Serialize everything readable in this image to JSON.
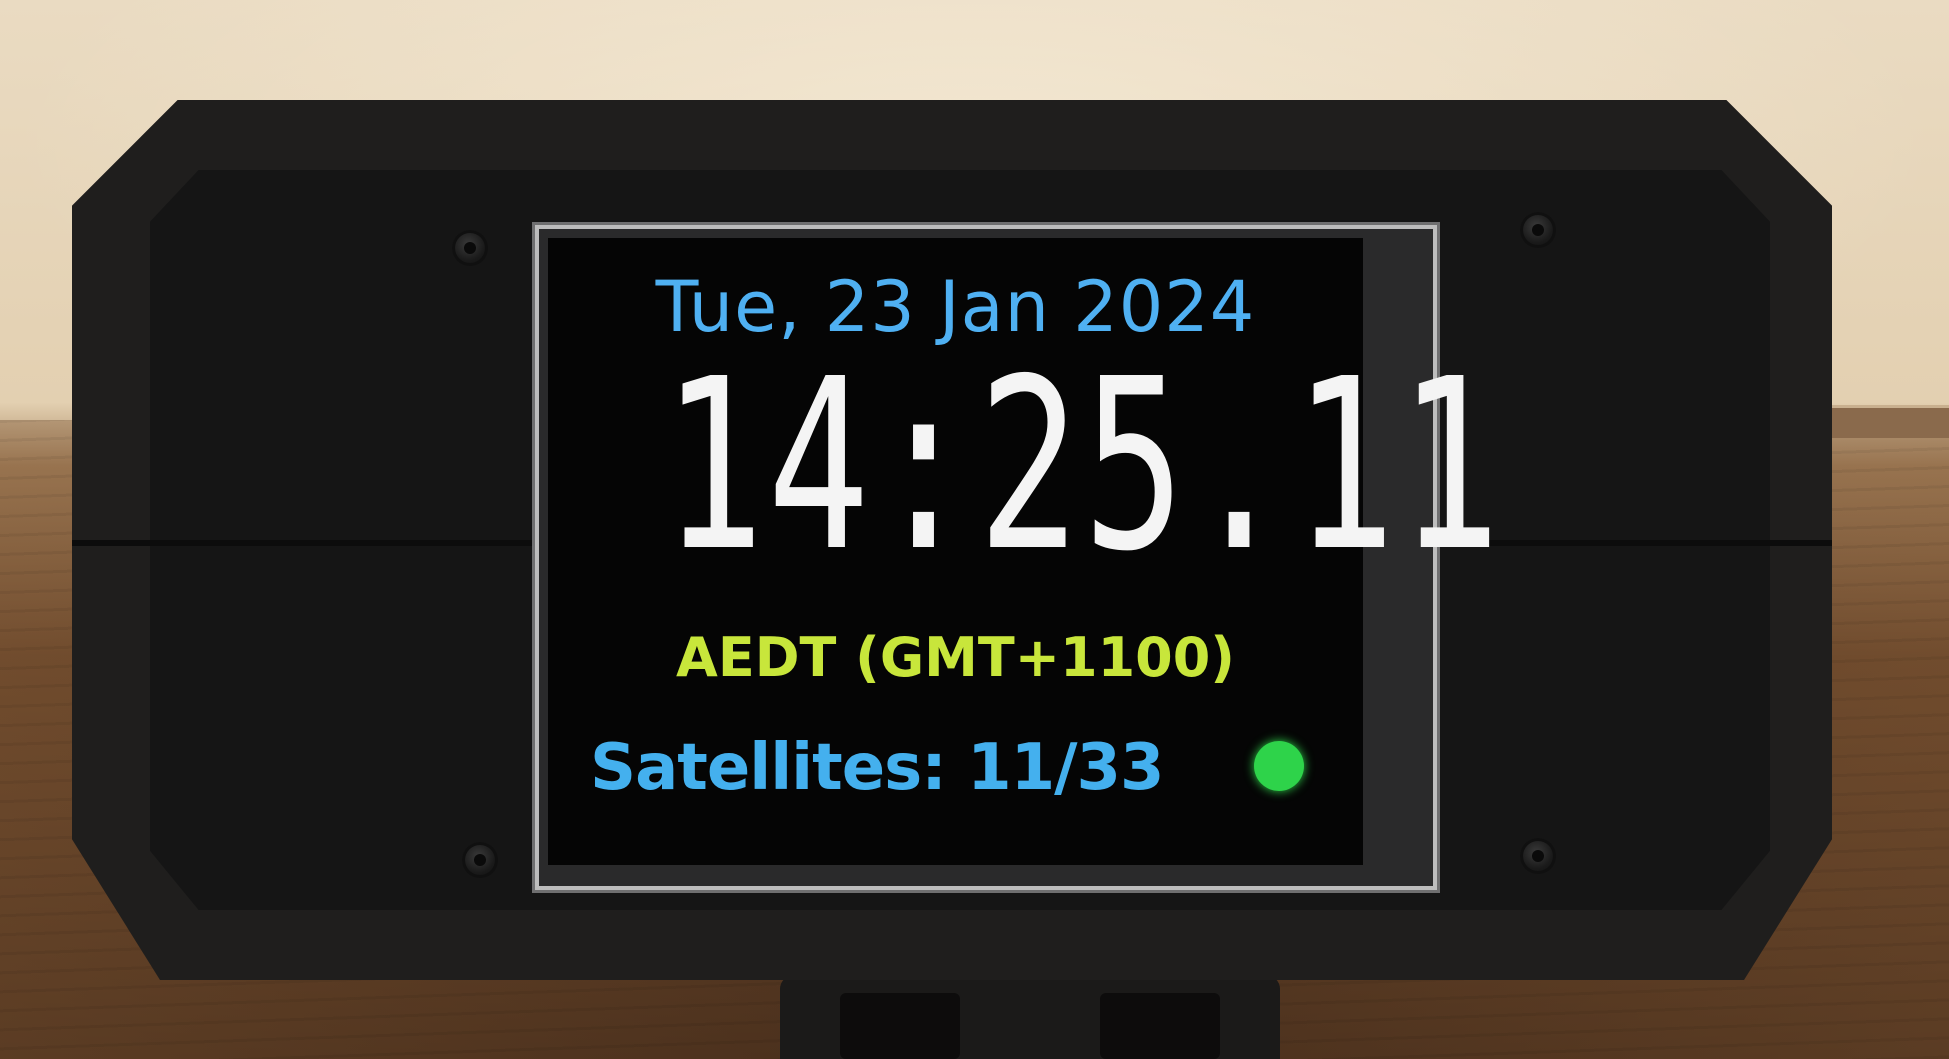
{
  "display": {
    "date": "Tue, 23 Jan 2024",
    "time": "14:25.11",
    "timezone": "AEDT (GMT+1100)",
    "satellites_label": "Satellites: 11/33",
    "status_indicator": {
      "icon": "status-dot-icon",
      "color": "#2ed34a"
    }
  },
  "colors": {
    "date_text": "#4fb0f2",
    "time_text": "#f4f4f4",
    "timezone_text": "#c8e63b",
    "satellites_text": "#44b0ee",
    "screen_background": "#050505",
    "case": "#1f1e1d"
  }
}
